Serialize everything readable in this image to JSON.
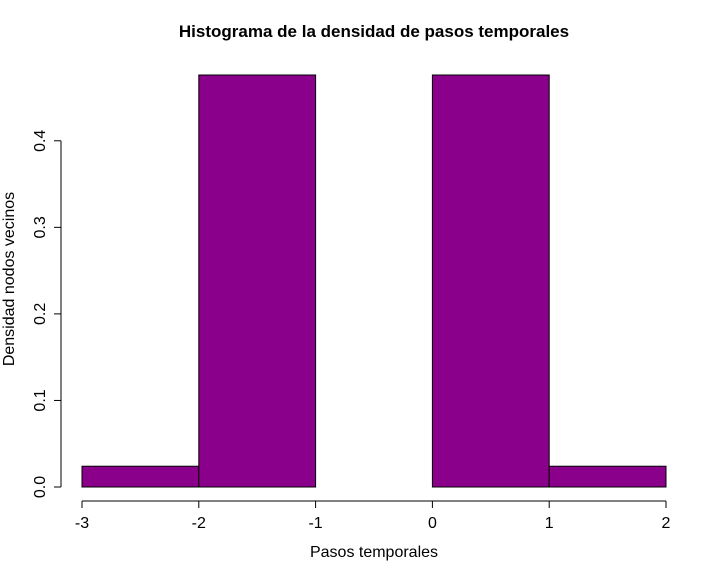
{
  "chart_data": {
    "type": "bar",
    "subtype": "histogram",
    "title": "Histograma de la densidad de pasos temporales",
    "xlabel": "Pasos temporales",
    "ylabel": "Densidad nodos vecinos",
    "bins": [
      {
        "start": -3,
        "end": -2,
        "value": 0.024
      },
      {
        "start": -2,
        "end": -1,
        "value": 0.476
      },
      {
        "start": -1,
        "end": 0,
        "value": 0.0
      },
      {
        "start": 0,
        "end": 1,
        "value": 0.476
      },
      {
        "start": 1,
        "end": 2,
        "value": 0.024
      }
    ],
    "x_ticks": [
      "-3",
      "-2",
      "-1",
      "0",
      "1",
      "2"
    ],
    "y_ticks": [
      "0.0",
      "0.1",
      "0.2",
      "0.3",
      "0.4"
    ],
    "xlim": [
      -3,
      2
    ],
    "ylim": [
      0,
      0.476
    ],
    "grid": false,
    "legend": "none",
    "bar_color": "#8B008B"
  }
}
